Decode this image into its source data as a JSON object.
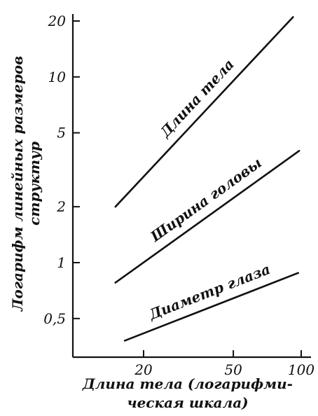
{
  "chart_data": {
    "type": "line",
    "title": "",
    "x_axis": {
      "scale": "log",
      "range": [
        13,
        100
      ],
      "ticks": [
        20,
        50,
        100
      ],
      "tick_labels": [
        "20",
        "50",
        "100"
      ],
      "title_lines": [
        "Длина тела (логарифми-",
        "ческая шкала)"
      ]
    },
    "y_axis": {
      "scale": "log",
      "range": [
        0.3,
        20
      ],
      "ticks": [
        0.5,
        1,
        2,
        5,
        10,
        20
      ],
      "tick_labels": [
        "0,5",
        "1",
        "2",
        "5",
        "10",
        "20"
      ],
      "title_lines": [
        "Логарифм линейных размеров",
        "структур"
      ]
    },
    "grid": false,
    "legend": "none",
    "series": [
      {
        "name": "Длина тела",
        "x": [
          15,
          92
        ],
        "y": [
          2.0,
          21.0
        ]
      },
      {
        "name": "Ширина головы",
        "x": [
          15,
          98
        ],
        "y": [
          0.78,
          4.0
        ]
      },
      {
        "name": "Диаметр глаза",
        "x": [
          16.5,
          97
        ],
        "y": [
          0.38,
          0.88
        ]
      }
    ]
  }
}
